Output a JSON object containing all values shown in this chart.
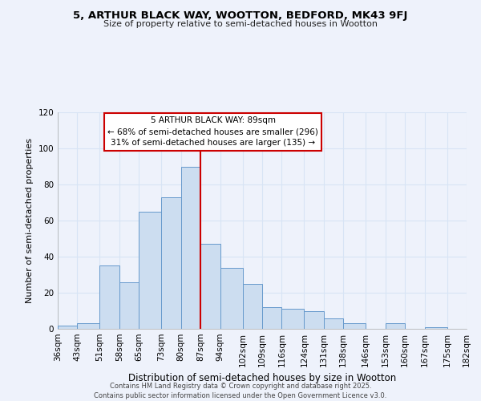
{
  "title": "5, ARTHUR BLACK WAY, WOOTTON, BEDFORD, MK43 9FJ",
  "subtitle": "Size of property relative to semi-detached houses in Wootton",
  "xlabel": "Distribution of semi-detached houses by size in Wootton",
  "ylabel": "Number of semi-detached properties",
  "bar_color": "#ccddf0",
  "bar_edge_color": "#6699cc",
  "background_color": "#eef2fb",
  "grid_color": "#d8e4f5",
  "bins": [
    36,
    43,
    51,
    58,
    65,
    73,
    80,
    87,
    94,
    102,
    109,
    116,
    124,
    131,
    138,
    146,
    153,
    160,
    167,
    175,
    182
  ],
  "counts": [
    2,
    3,
    35,
    26,
    65,
    73,
    90,
    47,
    34,
    25,
    12,
    11,
    10,
    6,
    3,
    0,
    3,
    0,
    1,
    0
  ],
  "tick_labels": [
    "36sqm",
    "43sqm",
    "51sqm",
    "58sqm",
    "65sqm",
    "73sqm",
    "80sqm",
    "87sqm",
    "94sqm",
    "102sqm",
    "109sqm",
    "116sqm",
    "124sqm",
    "131sqm",
    "138sqm",
    "146sqm",
    "153sqm",
    "160sqm",
    "167sqm",
    "175sqm",
    "182sqm"
  ],
  "vline_x": 87,
  "vline_color": "#cc0000",
  "annotation_title": "5 ARTHUR BLACK WAY: 89sqm",
  "annotation_line1": "← 68% of semi-detached houses are smaller (296)",
  "annotation_line2": "31% of semi-detached houses are larger (135) →",
  "annotation_box_color": "#ffffff",
  "annotation_box_edge": "#cc0000",
  "ylim": [
    0,
    120
  ],
  "yticks": [
    0,
    20,
    40,
    60,
    80,
    100,
    120
  ],
  "footer1": "Contains HM Land Registry data © Crown copyright and database right 2025.",
  "footer2": "Contains public sector information licensed under the Open Government Licence v3.0."
}
